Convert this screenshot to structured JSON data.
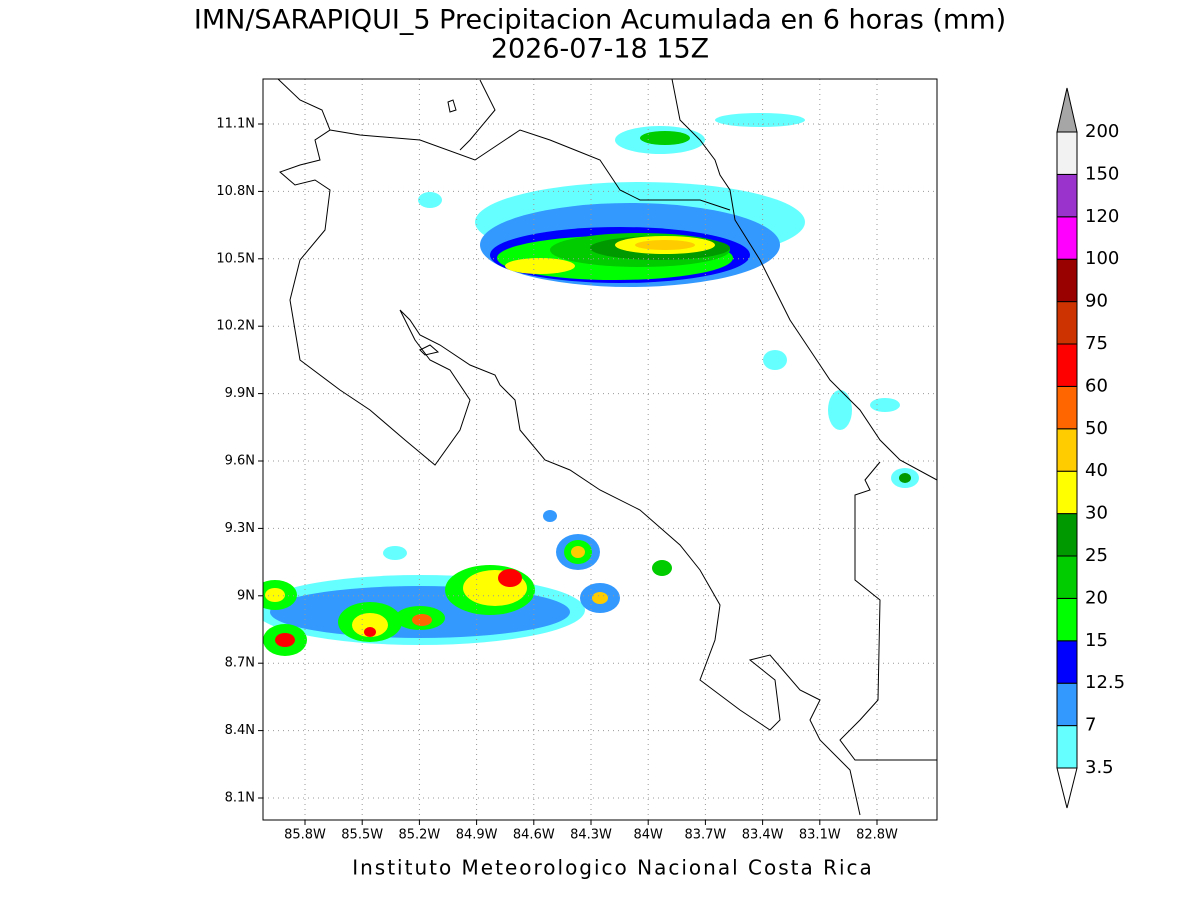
{
  "title": "IMN/SARAPIQUI_5 Precipitacion Acumulada en 6 horas (mm)",
  "subtitle": "2026-07-18 15Z",
  "map": {
    "lat_labels": [
      "11.1N",
      "10.8N",
      "10.5N",
      "10.2N",
      "9.9N",
      "9.6N",
      "9.3N",
      "9N",
      "8.7N",
      "8.4N",
      "8.1N"
    ],
    "lon_labels": [
      "85.8W",
      "85.5W",
      "85.2W",
      "84.9W",
      "84.6W",
      "84.3W",
      "84W",
      "83.7W",
      "83.4W",
      "83.1W",
      "82.8W"
    ],
    "grid": true
  },
  "colorbar": {
    "labels": [
      "3.5",
      "7",
      "12.5",
      "15",
      "20",
      "25",
      "30",
      "40",
      "50",
      "60",
      "75",
      "90",
      "100",
      "120",
      "150",
      "200"
    ],
    "colors": [
      "#ffffff",
      "#66ffff",
      "#3399ff",
      "#0000ff",
      "#00ff00",
      "#00cc00",
      "#009900",
      "#ffff00",
      "#ffcc00",
      "#ff6600",
      "#ff0000",
      "#cc3300",
      "#990000",
      "#ff00ff",
      "#9933cc",
      "#f2f2f2",
      "#a6a6a6"
    ]
  },
  "footer": "Instituto Meteorologico Nacional Costa Rica"
}
